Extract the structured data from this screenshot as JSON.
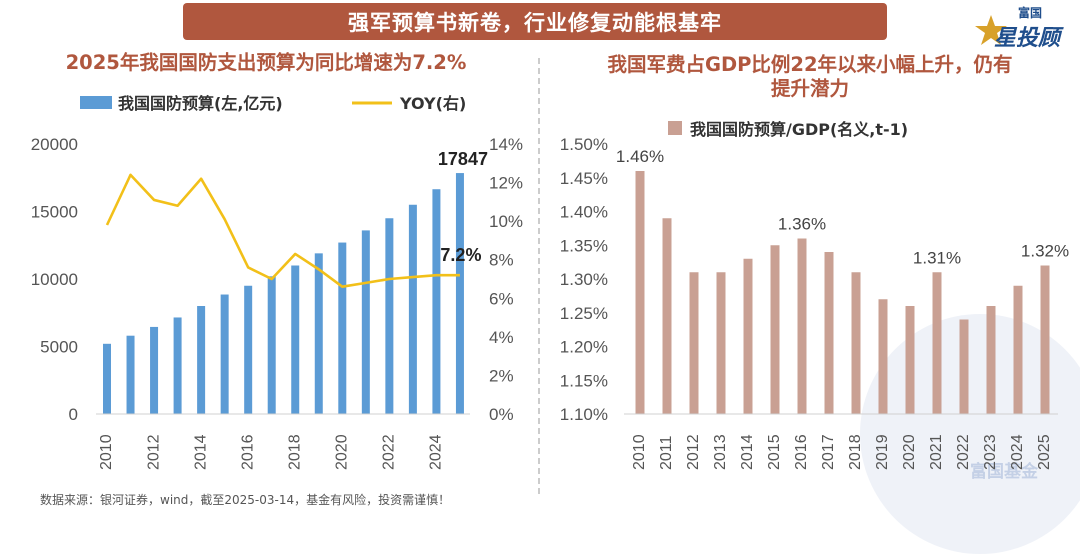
{
  "banner": {
    "title": "强军预算书新卷，行业修复动能根基牢"
  },
  "logo": {
    "small": "富国",
    "big": "星投顾"
  },
  "footer": {
    "source": "数据来源：银河证券，wind，截至2025-03-14，基金有风险，投资需谨慎！"
  },
  "watermark": {
    "text": "富国基金"
  },
  "colors": {
    "bar_blue": "#5b9bd5",
    "line_yellow": "#f2c019",
    "bar_rose": "#c9a093",
    "title_brown": "#b0573e"
  },
  "chart_data": [
    {
      "type": "bar",
      "title": "2025年我国国防支出预算为同比增速为7.2%",
      "x": [
        2010,
        2011,
        2012,
        2013,
        2014,
        2015,
        2016,
        2017,
        2018,
        2019,
        2020,
        2021,
        2022,
        2023,
        2024,
        2025
      ],
      "x_tick_labels": [
        "2010",
        "2012",
        "2014",
        "2016",
        "2018",
        "2020",
        "2022",
        "2024"
      ],
      "series": [
        {
          "name": "我国国防预算(左,亿元)",
          "type": "bar",
          "axis": "left",
          "values": [
            5200,
            5800,
            6450,
            7150,
            8000,
            8850,
            9500,
            10200,
            11000,
            11900,
            12700,
            13600,
            14500,
            15500,
            16650,
            17847
          ]
        },
        {
          "name": "YOY(右)",
          "type": "line",
          "axis": "right",
          "values": [
            9.8,
            12.4,
            11.1,
            10.8,
            12.2,
            10.1,
            7.6,
            7.0,
            8.3,
            7.5,
            6.6,
            6.8,
            7.0,
            7.1,
            7.2,
            7.2
          ]
        }
      ],
      "left_axis": {
        "min": 0,
        "max": 20000,
        "ticks": [
          "0",
          "5000",
          "10000",
          "15000",
          "20000"
        ]
      },
      "right_axis": {
        "min": 0,
        "max": 14,
        "ticks": [
          "0%",
          "2%",
          "4%",
          "6%",
          "8%",
          "10%",
          "12%",
          "14%"
        ]
      },
      "annotations": {
        "bar_last": "17847",
        "line_last": "7.2%"
      },
      "legend": "top"
    },
    {
      "type": "bar",
      "title": "我国军费占GDP比例22年以来小幅上升，仍有提升潜力",
      "title_lines": [
        "我国军费占GDP比例22年以来小幅上升，仍有",
        "提升潜力"
      ],
      "categories": [
        "2010",
        "2011",
        "2012",
        "2013",
        "2014",
        "2015",
        "2016",
        "2017",
        "2018",
        "2019",
        "2020",
        "2021",
        "2022",
        "2023",
        "2024",
        "2025"
      ],
      "series": [
        {
          "name": "我国国防预算/GDP(名义,t-1)",
          "values": [
            1.46,
            1.39,
            1.31,
            1.31,
            1.33,
            1.35,
            1.36,
            1.34,
            1.31,
            1.27,
            1.26,
            1.31,
            1.24,
            1.26,
            1.29,
            1.32
          ]
        }
      ],
      "y_axis": {
        "min": 1.1,
        "max": 1.5,
        "ticks": [
          "1.10%",
          "1.15%",
          "1.20%",
          "1.25%",
          "1.30%",
          "1.35%",
          "1.40%",
          "1.45%",
          "1.50%"
        ]
      },
      "data_labels": [
        {
          "index": 0,
          "text": "1.46%"
        },
        {
          "index": 6,
          "text": "1.36%"
        },
        {
          "index": 11,
          "text": "1.31%"
        },
        {
          "index": 15,
          "text": "1.32%"
        }
      ],
      "legend": "top"
    }
  ]
}
